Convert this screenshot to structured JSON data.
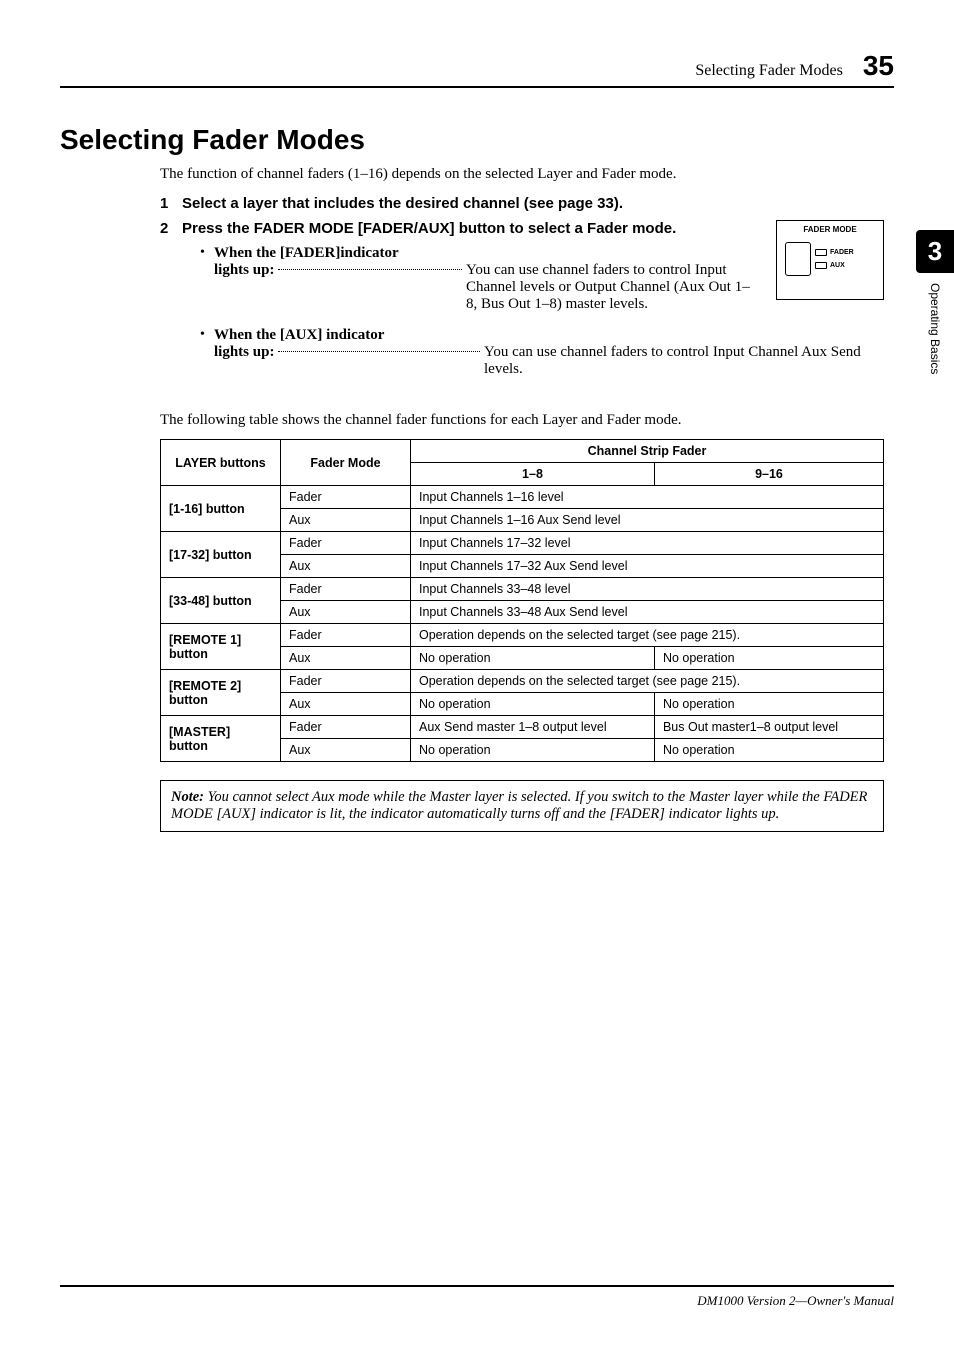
{
  "header": {
    "section": "Selecting Fader Modes",
    "page_number": "35"
  },
  "side_tab": {
    "chapter_num": "3",
    "label": "Operating Basics"
  },
  "title": "Selecting Fader Modes",
  "intro": "The function of channel faders (1–16) depends on the selected Layer and Fader mode.",
  "steps": {
    "s1": {
      "num": "1",
      "heading": "Select a layer that includes the desired channel (see page 33)."
    },
    "s2": {
      "num": "2",
      "heading": "Press the FADER MODE [FADER/AUX] button to select a Fader mode."
    }
  },
  "bullets": {
    "b1": {
      "label": "When the [FADER]indicator",
      "lights": "lights up:",
      "value": "You can use channel faders to control Input Channel levels or Output Channel (Aux Out 1–8, Bus Out 1–8) master levels."
    },
    "b2": {
      "label": "When the [AUX] indicator",
      "lights": "lights up:",
      "value": "You can use channel faders to control Input Channel Aux Send levels."
    }
  },
  "fader_box": {
    "title": "FADER MODE",
    "led1": "FADER",
    "led2": "AUX"
  },
  "table_intro": "The following table shows the channel fader functions for each Layer and Fader mode.",
  "table": {
    "headers": {
      "layer": "LAYER buttons",
      "mode": "Fader Mode",
      "strip": "Channel Strip Fader",
      "c1": "1–8",
      "c2": "9–16"
    },
    "rows": [
      {
        "layer": "[1-16] button",
        "mode": "Fader",
        "v": "Input Channels 1–16 level",
        "span": true
      },
      {
        "layer": "",
        "mode": "Aux",
        "v": "Input Channels 1–16 Aux Send level",
        "span": true
      },
      {
        "layer": "[17-32] button",
        "mode": "Fader",
        "v": "Input Channels 17–32 level",
        "span": true
      },
      {
        "layer": "",
        "mode": "Aux",
        "v": "Input Channels 17–32 Aux Send level",
        "span": true
      },
      {
        "layer": "[33-48] button",
        "mode": "Fader",
        "v": "Input Channels 33–48 level",
        "span": true
      },
      {
        "layer": "",
        "mode": "Aux",
        "v": "Input Channels 33–48 Aux Send level",
        "span": true
      },
      {
        "layer": "[REMOTE 1] button",
        "mode": "Fader",
        "v": "Operation depends on the selected target (see page 215).",
        "span": true
      },
      {
        "layer": "",
        "mode": "Aux",
        "v1": "No operation",
        "v2": "No operation",
        "span": false
      },
      {
        "layer": "[REMOTE 2] button",
        "mode": "Fader",
        "v": "Operation depends on the selected target (see page 215).",
        "span": true
      },
      {
        "layer": "",
        "mode": "Aux",
        "v1": "No operation",
        "v2": "No operation",
        "span": false
      },
      {
        "layer": "[MASTER] button",
        "mode": "Fader",
        "v1": "Aux Send master 1–8 output level",
        "v2": "Bus Out master1–8 output level",
        "span": false
      },
      {
        "layer": "",
        "mode": "Aux",
        "v1": "No operation",
        "v2": "No operation",
        "span": false
      }
    ]
  },
  "note": {
    "label": "Note:",
    "text": " You cannot select Aux mode while the Master layer is selected. If you switch to the Master layer while the FADER MODE [AUX] indicator is lit, the indicator automatically turns off and the [FADER] indicator lights up."
  },
  "footer": "DM1000 Version 2—Owner's Manual"
}
